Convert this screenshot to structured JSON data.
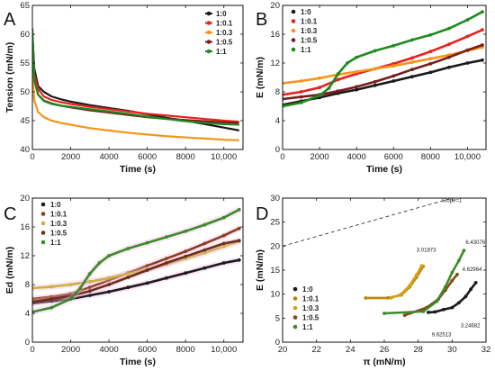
{
  "colors": {
    "1:0": "#1a1a1a",
    "1:0.1": "#e8211b",
    "1:0.3": "#f7941d",
    "1:0.5": "#7a1c1c",
    "1:1": "#1e8a1e",
    "C_1:0.1": "#8b3a1a",
    "C_1:0.3": "#c9b13a",
    "C_1:0.5": "#6b2e1a",
    "C_1:1": "#3c8a2a",
    "D_1:0.1": "#b8860b",
    "D_1:0.3": "#d4a017",
    "D_1:0.5": "#8b4513",
    "D_1:1": "#3c8a2a"
  },
  "chart_data": [
    {
      "panel": "A",
      "type": "line",
      "xlabel": "Time (s)",
      "ylabel": "Tension (mN/m)",
      "xlim": [
        0,
        11000
      ],
      "ylim": [
        40,
        65
      ],
      "xticks": [
        "0",
        "2000",
        "4000",
        "6000",
        "8000",
        "10,000"
      ],
      "xtick_values": [
        0,
        2000,
        4000,
        6000,
        8000,
        10000
      ],
      "yticks": [
        "40",
        "45",
        "50",
        "55",
        "60",
        "65"
      ],
      "ytick_values": [
        40,
        45,
        50,
        55,
        60,
        65
      ],
      "legend_position": "top-right",
      "series": [
        {
          "name": "1:0",
          "x": [
            0,
            100,
            300,
            600,
            1000,
            1500,
            2000,
            3000,
            4000,
            5000,
            6000,
            7000,
            8000,
            9000,
            10000,
            10800
          ],
          "y": [
            60,
            54,
            51,
            50,
            49.2,
            48.7,
            48.3,
            47.7,
            47.2,
            46.7,
            46.1,
            45.5,
            45,
            44.4,
            43.8,
            43.3
          ]
        },
        {
          "name": "1:0.1",
          "x": [
            0,
            100,
            300,
            600,
            1000,
            1500,
            2000,
            3000,
            4000,
            5000,
            6000,
            7000,
            8000,
            9000,
            10000,
            10800
          ],
          "y": [
            59,
            53,
            50.5,
            49.2,
            48.6,
            48.2,
            47.9,
            47.4,
            47.0,
            46.6,
            46.2,
            45.9,
            45.6,
            45.3,
            45.0,
            44.8
          ]
        },
        {
          "name": "1:0.3",
          "x": [
            0,
            100,
            300,
            600,
            1000,
            1500,
            2000,
            3000,
            4000,
            5000,
            6000,
            7000,
            8000,
            9000,
            10000,
            10800
          ],
          "y": [
            53,
            48.5,
            46.5,
            45.6,
            45,
            44.6,
            44.3,
            43.7,
            43.3,
            42.9,
            42.6,
            42.3,
            42.1,
            41.9,
            41.7,
            41.6
          ]
        },
        {
          "name": "1:0.5",
          "x": [
            0,
            100,
            300,
            600,
            1000,
            1500,
            2000,
            3000,
            4000,
            5000,
            6000,
            7000,
            8000,
            9000,
            10000,
            10800
          ],
          "y": [
            60,
            52,
            49.5,
            48.5,
            48,
            47.6,
            47.3,
            46.8,
            46.4,
            46,
            45.6,
            45.3,
            45.1,
            44.9,
            44.7,
            44.6
          ]
        },
        {
          "name": "1:1",
          "x": [
            0,
            100,
            300,
            600,
            1000,
            1500,
            2000,
            3000,
            4000,
            5000,
            6000,
            7000,
            8000,
            9000,
            10000,
            10800
          ],
          "y": [
            61,
            52,
            49.5,
            48.4,
            47.9,
            47.6,
            47.4,
            47.0,
            46.6,
            46.2,
            45.7,
            45.3,
            44.9,
            44.6,
            44.4,
            44.3
          ]
        }
      ]
    },
    {
      "panel": "B",
      "type": "scatter",
      "xlabel": "Time (s)",
      "ylabel": "E (mN/m)",
      "xlim": [
        0,
        11000
      ],
      "ylim": [
        0,
        20
      ],
      "xticks": [
        "0",
        "2000",
        "4000",
        "6000",
        "8000",
        "10,000"
      ],
      "xtick_values": [
        0,
        2000,
        4000,
        6000,
        8000,
        10000
      ],
      "yticks": [
        "0",
        "4",
        "8",
        "12",
        "16",
        "20"
      ],
      "ytick_values": [
        0,
        4,
        8,
        12,
        16,
        20
      ],
      "legend_position": "top-left",
      "series": [
        {
          "name": "1:0",
          "x": [
            0,
            1000,
            2000,
            3000,
            4000,
            5000,
            6000,
            7000,
            8000,
            9000,
            10000,
            10800
          ],
          "y": [
            6.2,
            6.7,
            7.2,
            7.8,
            8.3,
            8.9,
            9.5,
            10.1,
            10.7,
            11.4,
            12.0,
            12.4
          ]
        },
        {
          "name": "1:0.1",
          "x": [
            0,
            1000,
            2000,
            3000,
            4000,
            5000,
            6000,
            7000,
            8000,
            9000,
            10000,
            10800
          ],
          "y": [
            7.6,
            8.0,
            8.6,
            9.7,
            10.5,
            11.2,
            11.9,
            12.7,
            13.6,
            14.6,
            15.7,
            16.6
          ]
        },
        {
          "name": "1:0.3",
          "x": [
            0,
            1000,
            2000,
            3000,
            4000,
            5000,
            6000,
            7000,
            8000,
            9000,
            10000,
            10800
          ],
          "y": [
            9.2,
            9.5,
            9.9,
            10.4,
            10.8,
            11.2,
            11.6,
            12.1,
            12.6,
            13.1,
            13.7,
            14.2
          ]
        },
        {
          "name": "1:0.5",
          "x": [
            0,
            1000,
            2000,
            3000,
            4000,
            5000,
            6000,
            7000,
            8000,
            9000,
            10000,
            10800
          ],
          "y": [
            7.0,
            7.3,
            7.6,
            8.1,
            8.7,
            9.4,
            10.2,
            11.1,
            11.9,
            12.8,
            13.8,
            14.5
          ]
        },
        {
          "name": "1:1",
          "x": [
            0,
            1000,
            2000,
            2500,
            3000,
            3500,
            4000,
            5000,
            6000,
            7000,
            8000,
            9000,
            10000,
            10800
          ],
          "y": [
            6.0,
            6.5,
            7.5,
            8.5,
            10.5,
            12.0,
            12.8,
            13.7,
            14.4,
            15.2,
            15.9,
            16.8,
            18.0,
            19.1
          ]
        }
      ]
    },
    {
      "panel": "C",
      "type": "scatter",
      "xlabel": "Time (s)",
      "ylabel": "Ed (mN/m)",
      "xlim": [
        0,
        11000
      ],
      "ylim": [
        0,
        20
      ],
      "xticks": [
        "0",
        "2000",
        "4000",
        "6000",
        "8000",
        "10,000"
      ],
      "xtick_values": [
        0,
        2000,
        4000,
        6000,
        8000,
        10000
      ],
      "yticks": [
        "0",
        "4",
        "8",
        "12",
        "16",
        "20"
      ],
      "ytick_values": [
        0,
        4,
        8,
        12,
        16,
        20
      ],
      "legend_position": "top-left",
      "series": [
        {
          "name": "1:0",
          "x": [
            0,
            1000,
            2000,
            3000,
            4000,
            5000,
            6000,
            7000,
            8000,
            9000,
            10000,
            10800
          ],
          "y": [
            5.4,
            5.7,
            6.0,
            6.5,
            7.0,
            7.6,
            8.2,
            8.9,
            9.6,
            10.3,
            11.0,
            11.4
          ]
        },
        {
          "name": "1:0.1",
          "x": [
            0,
            1000,
            2000,
            3000,
            4000,
            5000,
            6000,
            7000,
            8000,
            9000,
            10000,
            10800
          ],
          "y": [
            6.0,
            6.3,
            6.7,
            7.6,
            8.6,
            9.6,
            10.6,
            11.6,
            12.6,
            13.7,
            14.8,
            15.8
          ]
        },
        {
          "name": "1:0.3",
          "x": [
            0,
            1000,
            2000,
            3000,
            4000,
            5000,
            6000,
            7000,
            8000,
            9000,
            10000,
            10800
          ],
          "y": [
            7.5,
            7.7,
            8.0,
            8.4,
            8.9,
            9.5,
            10.1,
            10.8,
            11.6,
            12.4,
            13.3,
            14.0
          ]
        },
        {
          "name": "1:0.5",
          "x": [
            0,
            1000,
            2000,
            3000,
            4000,
            5000,
            6000,
            7000,
            8000,
            9000,
            10000,
            10800
          ],
          "y": [
            5.6,
            6.0,
            6.4,
            7.1,
            8.0,
            9.0,
            10.0,
            11.0,
            11.9,
            12.8,
            13.7,
            14.1
          ]
        },
        {
          "name": "1:1",
          "x": [
            0,
            1000,
            2000,
            2500,
            3000,
            3500,
            4000,
            5000,
            6000,
            7000,
            8000,
            9000,
            10000,
            10800
          ],
          "y": [
            4.2,
            4.8,
            6.0,
            7.5,
            9.5,
            11.0,
            12.0,
            13.0,
            13.8,
            14.6,
            15.4,
            16.3,
            17.3,
            18.4
          ]
        }
      ]
    },
    {
      "panel": "D",
      "type": "scatter",
      "xlabel": "π (mN/m)",
      "ylabel": "E (mN/m)",
      "xlim": [
        20,
        32
      ],
      "ylim": [
        0,
        30
      ],
      "xticks": [
        "20",
        "22",
        "24",
        "26",
        "28",
        "30",
        "32"
      ],
      "xtick_values": [
        20,
        22,
        24,
        26,
        28,
        30,
        32
      ],
      "yticks": [
        "0",
        "5",
        "10",
        "15",
        "20",
        "25",
        "30"
      ],
      "ytick_values": [
        0,
        5,
        10,
        15,
        20,
        25,
        30
      ],
      "legend_position": "bottom-left",
      "reference_line": {
        "label": "Slope=1",
        "x": [
          20,
          32
        ],
        "y": [
          20,
          32
        ]
      },
      "annotations": [
        {
          "text": "3.01873",
          "x": 27.9,
          "y": 18.8
        },
        {
          "text": "6.43076",
          "x": 30.8,
          "y": 20.4
        },
        {
          "text": "4.62964",
          "x": 30.6,
          "y": 14.8
        },
        {
          "text": "3.24682",
          "x": 30.5,
          "y": 3.1
        },
        {
          "text": "9.62513",
          "x": 28.8,
          "y": 1.2
        }
      ],
      "series": [
        {
          "name": "1:0",
          "x": [
            28.6,
            29.0,
            29.5,
            30.0,
            30.4,
            30.8,
            31.1,
            31.4
          ],
          "y": [
            6.2,
            6.3,
            6.8,
            7.2,
            8.2,
            9.5,
            11.0,
            12.4
          ]
        },
        {
          "name": "1:0.1",
          "x": [
            24.9,
            26.2,
            27.0,
            27.5,
            27.9,
            28.3
          ],
          "y": [
            9.2,
            9.2,
            9.8,
            11.5,
            13.5,
            15.8
          ]
        },
        {
          "name": "1:0.3",
          "x": [
            26.4,
            27.0,
            27.5,
            27.9,
            28.2
          ],
          "y": [
            9.2,
            10.0,
            11.8,
            14.0,
            15.9
          ]
        },
        {
          "name": "1:0.5",
          "x": [
            27.2,
            28.5,
            29.2,
            29.6,
            30.0,
            30.3
          ],
          "y": [
            5.6,
            7.2,
            9.0,
            10.8,
            12.8,
            14.1
          ]
        },
        {
          "name": "1:1",
          "x": [
            26.0,
            28.3,
            29.1,
            29.6,
            30.0,
            30.4,
            30.7
          ],
          "y": [
            6.0,
            6.4,
            8.5,
            11.5,
            14.5,
            17.0,
            19.1
          ]
        }
      ]
    }
  ],
  "legend": {
    "A": [
      "1:0",
      "1:0.1",
      "1:0.3",
      "1:0.5",
      "1:1"
    ],
    "B": [
      "1:0",
      "1:0.1",
      "1:0.3",
      "1:0.5",
      "1:1"
    ],
    "C": [
      "1:0",
      "1:0.1",
      "1:0.3",
      "1:0.5",
      "1:1"
    ],
    "D": [
      "1:0",
      "1:0.1",
      "1:0.3",
      "1:0.5",
      "1:1"
    ]
  }
}
